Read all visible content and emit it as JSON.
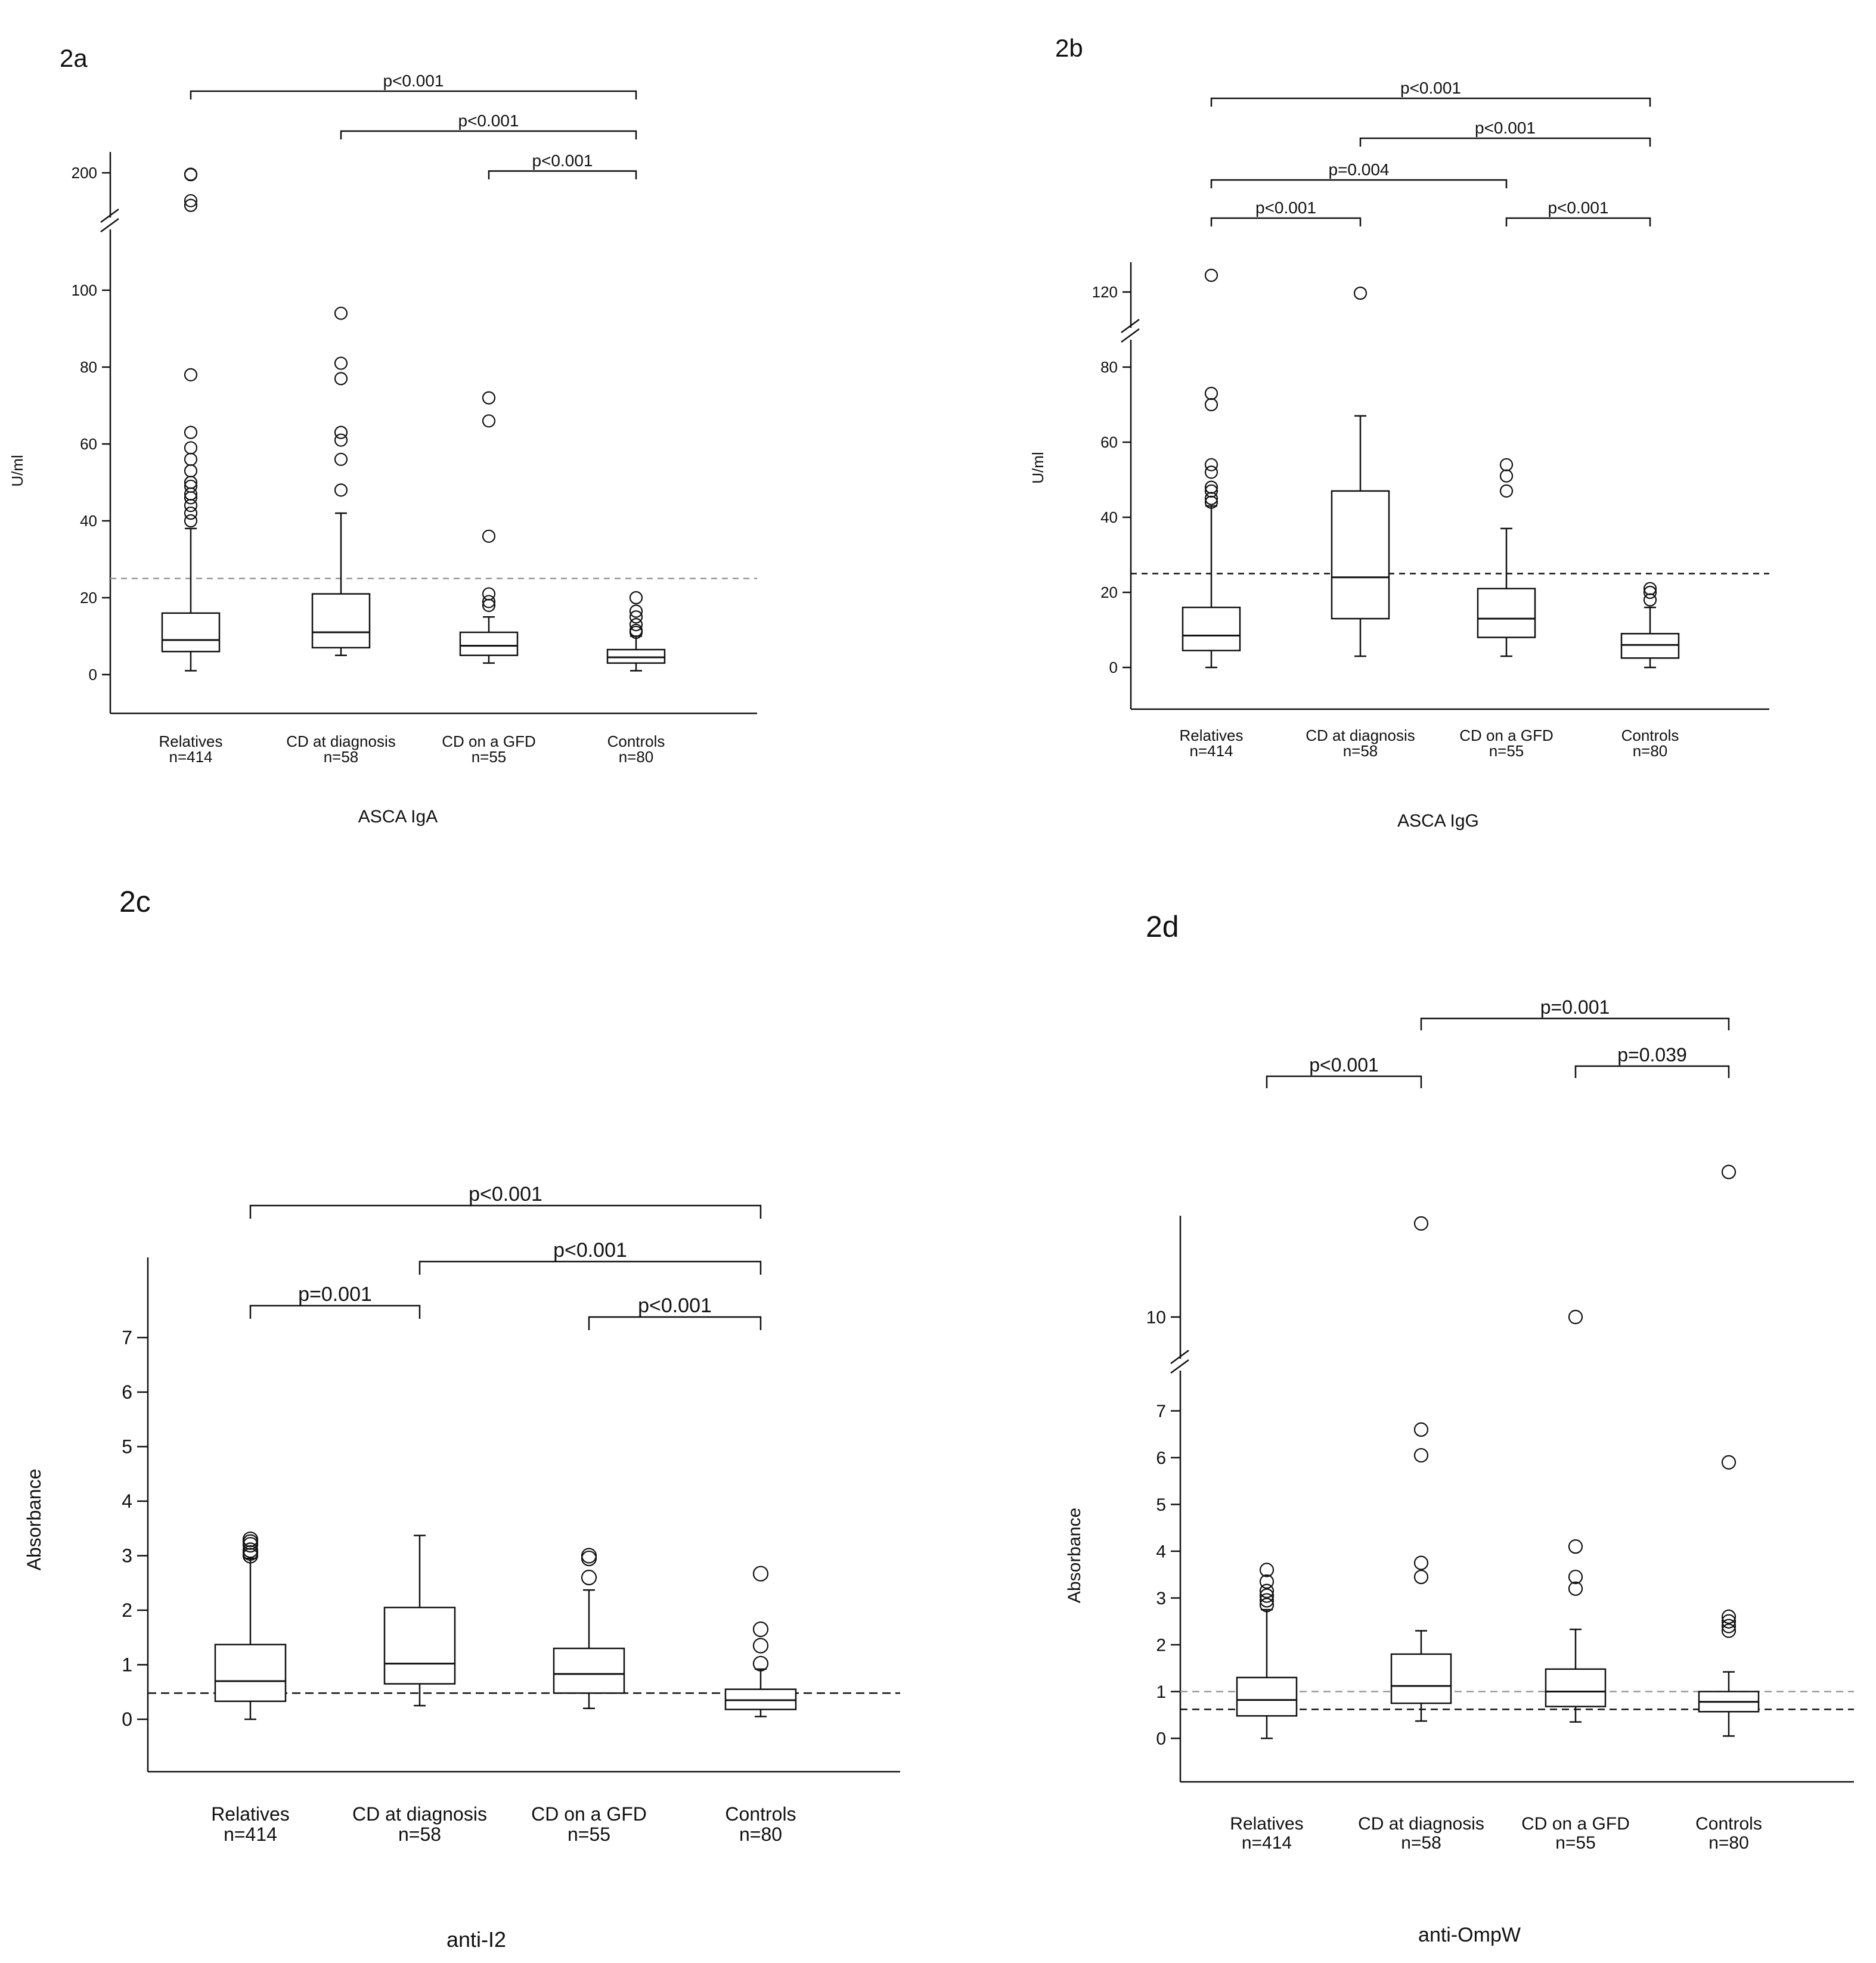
{
  "chart_data": [
    {
      "panel": "2a",
      "type": "box",
      "title": "ASCA IgA",
      "ylabel": "U/ml",
      "categories": [
        "Relatives",
        "CD at diagnosis",
        "CD on a GFD",
        "Controls"
      ],
      "ns": [
        "n=414",
        "n=58",
        "n=55",
        "n=80"
      ],
      "yticks": [
        0,
        20,
        40,
        60,
        80,
        100
      ],
      "break": {
        "below": 100,
        "resume": 120,
        "upper_ticks": [
          200
        ]
      },
      "cutoffs": [
        25
      ],
      "boxes": [
        {
          "q1": 6,
          "median": 9,
          "q3": 16,
          "lo": 1,
          "hi": 38,
          "outliers": [
            40,
            42,
            44,
            46,
            47,
            49,
            50,
            53,
            56,
            59,
            63,
            78,
            130,
            140,
            196,
            197
          ]
        },
        {
          "q1": 7,
          "median": 11,
          "q3": 21,
          "lo": 5,
          "hi": 42,
          "outliers": [
            48,
            56,
            61,
            63,
            77,
            81,
            94
          ]
        },
        {
          "q1": 5,
          "median": 7.5,
          "q3": 11,
          "lo": 3,
          "hi": 15,
          "outliers": [
            18,
            19,
            21,
            36,
            66,
            72
          ]
        },
        {
          "q1": 3,
          "median": 4.5,
          "q3": 6.5,
          "lo": 1,
          "hi": 10,
          "outliers": [
            11,
            11.5,
            13,
            15,
            16.5,
            20
          ]
        }
      ],
      "comparisons": [
        {
          "from": 0,
          "to": 3,
          "label": "p<0.001"
        },
        {
          "from": 1,
          "to": 3,
          "label": "p<0.001"
        },
        {
          "from": 2,
          "to": 3,
          "label": "p<0.001"
        }
      ]
    },
    {
      "panel": "2b",
      "type": "box",
      "title": "ASCA IgG",
      "ylabel": "U/ml",
      "categories": [
        "Relatives",
        "CD at diagnosis",
        "CD on a GFD",
        "Controls"
      ],
      "ns": [
        "n=414",
        "n=58",
        "n=55",
        "n=80"
      ],
      "yticks": [
        0,
        20,
        40,
        60,
        80
      ],
      "break": {
        "below": 80,
        "resume": 110,
        "upper_ticks": [
          120
        ]
      },
      "cutoffs": [
        25
      ],
      "boxes": [
        {
          "q1": 4.5,
          "median": 8.5,
          "q3": 16,
          "lo": 0,
          "hi": 43,
          "outliers": [
            44,
            45,
            47,
            48,
            52,
            54,
            70,
            73,
            134
          ]
        },
        {
          "q1": 13,
          "median": 24,
          "q3": 47,
          "lo": 3,
          "hi": 67,
          "outliers": [
            119
          ]
        },
        {
          "q1": 8,
          "median": 13,
          "q3": 21,
          "lo": 3,
          "hi": 37,
          "outliers": [
            47,
            51,
            54
          ]
        },
        {
          "q1": 2.5,
          "median": 6,
          "q3": 9,
          "lo": 0,
          "hi": 16,
          "outliers": [
            18,
            20,
            21
          ]
        }
      ],
      "comparisons": [
        {
          "from": 0,
          "to": 3,
          "label": "p<0.001"
        },
        {
          "from": 1,
          "to": 3,
          "label": "p<0.001"
        },
        {
          "from": 0,
          "to": 2,
          "label": "p=0.004"
        },
        {
          "from": 0,
          "to": 1,
          "label": "p<0.001"
        },
        {
          "from": 2,
          "to": 3,
          "label": "p<0.001"
        }
      ]
    },
    {
      "panel": "2c",
      "type": "box",
      "title": "anti-I2",
      "ylabel": "Absorbance",
      "categories": [
        "Relatives",
        "CD at diagnosis",
        "CD on a GFD",
        "Controls"
      ],
      "ns": [
        "n=414",
        "n=58",
        "n=55",
        "n=80"
      ],
      "yticks": [
        0,
        1,
        2,
        3,
        4,
        5,
        6,
        7
      ],
      "break": null,
      "cutoffs": [
        0.48
      ],
      "boxes": [
        {
          "q1": 0.33,
          "median": 0.7,
          "q3": 1.37,
          "lo": 0,
          "hi": 2.95,
          "outliers": [
            3.0,
            3.05,
            3.1,
            3.2,
            3.25,
            3.3
          ]
        },
        {
          "q1": 0.65,
          "median": 1.02,
          "q3": 2.05,
          "lo": 0.25,
          "hi": 3.37,
          "outliers": []
        },
        {
          "q1": 0.48,
          "median": 0.83,
          "q3": 1.3,
          "lo": 0.2,
          "hi": 2.37,
          "outliers": [
            2.6,
            2.95,
            3.0
          ]
        },
        {
          "q1": 0.18,
          "median": 0.35,
          "q3": 0.55,
          "lo": 0.05,
          "hi": 0.92,
          "outliers": [
            1.02,
            1.35,
            1.65,
            2.67
          ]
        }
      ],
      "comparisons": [
        {
          "from": 0,
          "to": 3,
          "label": "p<0.001"
        },
        {
          "from": 1,
          "to": 3,
          "label": "p<0.001"
        },
        {
          "from": 0,
          "to": 1,
          "label": "p=0.001"
        },
        {
          "from": 2,
          "to": 3,
          "label": "p<0.001"
        }
      ]
    },
    {
      "panel": "2d",
      "type": "box",
      "title": "anti-OmpW",
      "ylabel": "Absorbance",
      "categories": [
        "Relatives",
        "CD at diagnosis",
        "CD on a GFD",
        "Controls"
      ],
      "ns": [
        "n=414",
        "n=58",
        "n=55",
        "n=80"
      ],
      "yticks": [
        0,
        1,
        2,
        3,
        4,
        5,
        6,
        7
      ],
      "break": {
        "below": 7.3,
        "resume": 9,
        "upper_ticks": [
          10
        ]
      },
      "cutoffs": [
        0.62,
        1.0
      ],
      "boxes": [
        {
          "q1": 0.48,
          "median": 0.82,
          "q3": 1.3,
          "lo": 0,
          "hi": 2.75,
          "outliers": [
            2.85,
            2.95,
            3.05,
            3.15,
            3.35,
            3.6
          ]
        },
        {
          "q1": 0.75,
          "median": 1.12,
          "q3": 1.8,
          "lo": 0.37,
          "hi": 2.3,
          "outliers": [
            3.45,
            3.75,
            6.05,
            6.6,
            12
          ]
        },
        {
          "q1": 0.68,
          "median": 1.0,
          "q3": 1.48,
          "lo": 0.35,
          "hi": 2.33,
          "outliers": [
            3.2,
            3.45,
            4.1,
            10
          ]
        },
        {
          "q1": 0.57,
          "median": 0.78,
          "q3": 1.0,
          "lo": 0.05,
          "hi": 1.42,
          "outliers": [
            2.3,
            2.4,
            2.5,
            2.6,
            5.9,
            13.1
          ]
        }
      ],
      "comparisons": [
        {
          "from": 1,
          "to": 3,
          "label": "p=0.001"
        },
        {
          "from": 0,
          "to": 1,
          "label": "p<0.001"
        },
        {
          "from": 2,
          "to": 3,
          "label": "p=0.039"
        }
      ]
    }
  ]
}
